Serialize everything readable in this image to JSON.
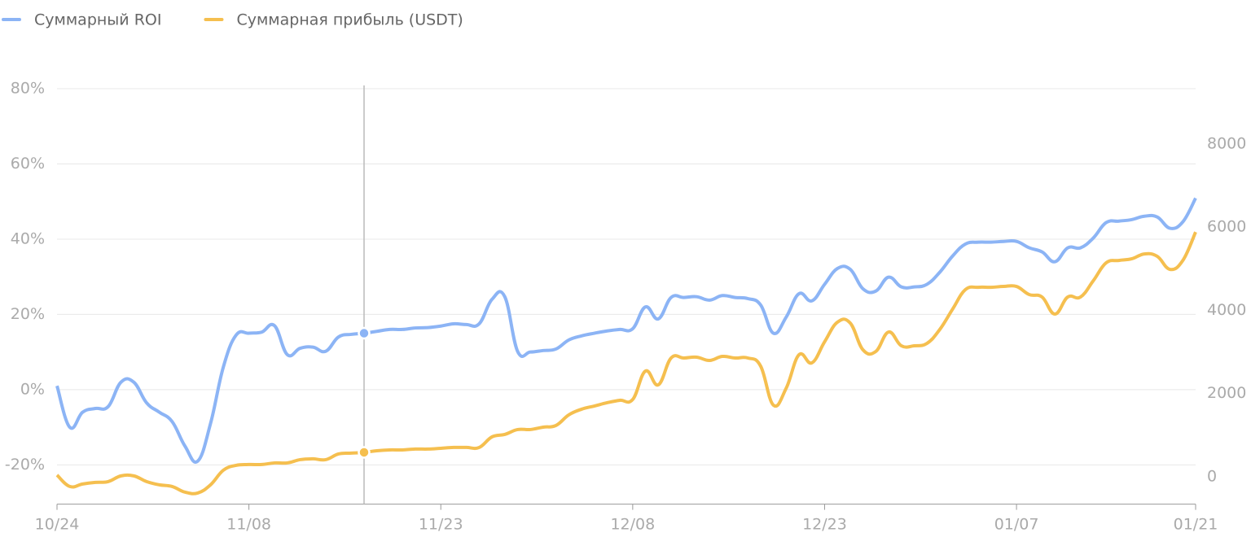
{
  "chart_data": {
    "type": "line",
    "categories": [
      "10/24",
      null,
      null,
      null,
      null,
      null,
      null,
      null,
      null,
      null,
      null,
      null,
      null,
      null,
      null,
      "11/08",
      null,
      null,
      null,
      null,
      null,
      null,
      null,
      null,
      null,
      null,
      null,
      null,
      null,
      null,
      "11/23",
      null,
      null,
      null,
      null,
      null,
      null,
      null,
      null,
      null,
      null,
      null,
      null,
      null,
      null,
      "12/08",
      null,
      null,
      null,
      null,
      null,
      null,
      null,
      null,
      null,
      null,
      null,
      null,
      null,
      null,
      "12/23",
      null,
      null,
      null,
      null,
      null,
      null,
      null,
      null,
      null,
      null,
      null,
      null,
      null,
      null,
      "01/07",
      null,
      null,
      null,
      null,
      null,
      null,
      null,
      null,
      null,
      null,
      null,
      null,
      null,
      "01/21"
    ],
    "series": [
      {
        "name": "Суммарный ROI",
        "color": "#8cb4f5",
        "values": [
          1,
          -10,
          -6,
          -5,
          -4.5,
          2,
          2,
          -3.5,
          -6,
          -8.5,
          -15,
          -19,
          -9,
          6,
          14.5,
          15,
          15.3,
          17,
          9.3,
          11,
          11.3,
          10.2,
          14,
          14.7,
          15,
          15.5,
          16,
          16,
          16.4,
          16.5,
          16.9,
          17.5,
          17.3,
          17.5,
          24,
          24.7,
          10.2,
          10,
          10.4,
          10.8,
          13.2,
          14.3,
          15,
          15.6,
          16,
          16.2,
          22,
          18.8,
          24.5,
          24.5,
          24.7,
          23.8,
          25,
          24.5,
          24.2,
          22.5,
          15,
          19.3,
          25.5,
          23.6,
          28,
          32.2,
          32,
          26.8,
          26.2,
          29.9,
          27.3,
          27.3,
          28,
          31.2,
          35.5,
          38.7,
          39.2,
          39.2,
          39.4,
          39.4,
          37.7,
          36.6,
          34,
          37.7,
          37.7,
          40.3,
          44.4,
          44.8,
          45.2,
          46.1,
          45.9,
          42.9,
          44.6,
          50.9
        ]
      },
      {
        "name": "Суммарная прибыль (USDT)",
        "color": "#f5bf4f",
        "axis": "y2",
        "values": [
          40,
          -235,
          -175,
          -137,
          -117,
          20,
          20,
          -117,
          -195,
          -235,
          -371,
          -391,
          -195,
          156,
          274,
          293,
          293,
          332,
          332,
          410,
          430,
          410,
          547,
          567,
          586,
          625,
          645,
          645,
          665,
          665,
          684,
          704,
          704,
          704,
          958,
          1017,
          1134,
          1134,
          1192,
          1232,
          1486,
          1623,
          1700,
          1779,
          1838,
          1857,
          2541,
          2209,
          2854,
          2854,
          2874,
          2796,
          2893,
          2854,
          2854,
          2659,
          1720,
          2131,
          2933,
          2737,
          3245,
          3715,
          3695,
          3050,
          3011,
          3480,
          3148,
          3148,
          3206,
          3539,
          4027,
          4497,
          4555,
          4555,
          4575,
          4575,
          4379,
          4320,
          3910,
          4320,
          4320,
          4712,
          5142,
          5200,
          5239,
          5357,
          5298,
          4985,
          5200,
          5884
        ]
      }
    ],
    "ylim": [
      -30,
      80
    ],
    "yticks": [
      {
        "value": -20,
        "label": "-20%"
      },
      {
        "value": 0,
        "label": "0%"
      },
      {
        "value": 20,
        "label": "20%"
      },
      {
        "value": 40,
        "label": "40%"
      },
      {
        "value": 60,
        "label": "60%"
      },
      {
        "value": 80,
        "label": "80%"
      }
    ],
    "y2lim": [
      -620,
      9330
    ],
    "y2ticks": [
      0,
      2000,
      4000,
      6000,
      8000
    ],
    "grid": true,
    "legend": "top-left"
  }
}
